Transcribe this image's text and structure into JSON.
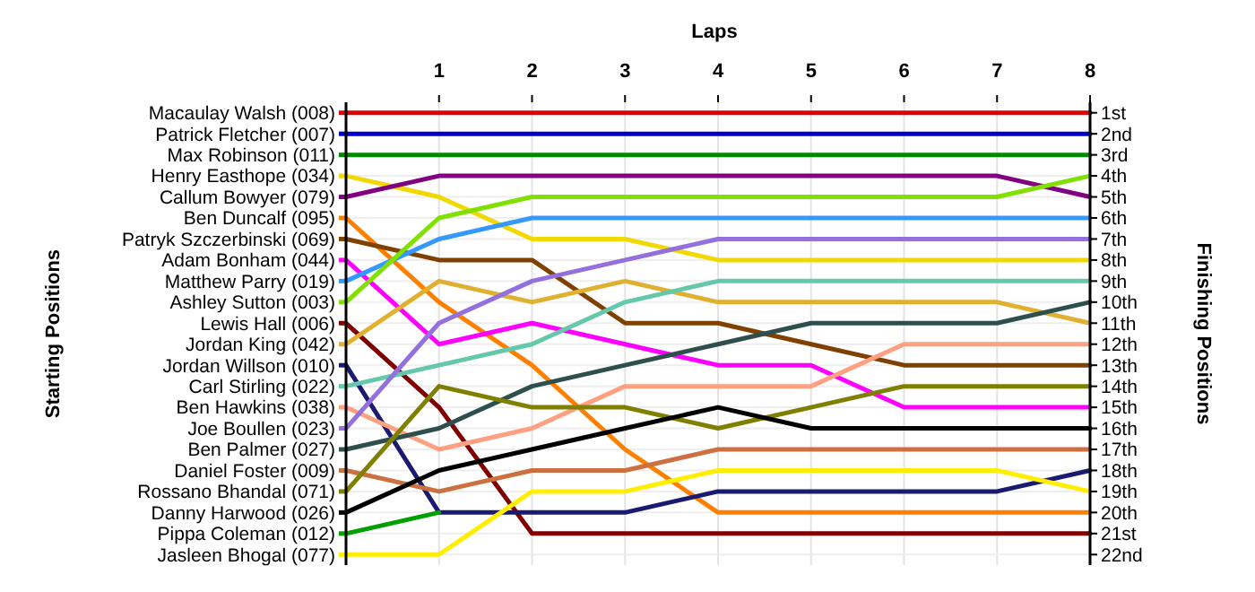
{
  "chart_data": {
    "type": "line",
    "xlabel": "Laps",
    "ylabel": "Finishing Positions",
    "xlim": [
      0,
      8
    ],
    "xticks": [
      1,
      2,
      3,
      4,
      5,
      6,
      7,
      8
    ],
    "x": [
      0,
      1,
      2,
      3,
      4,
      5,
      6,
      7,
      8
    ],
    "ylim": [
      22.5,
      0.5
    ],
    "yticks": [
      {
        "value": 1,
        "label": "1st"
      },
      {
        "value": 2,
        "label": "2nd"
      },
      {
        "value": 3,
        "label": "3rd"
      },
      {
        "value": 4,
        "label": "4th"
      },
      {
        "value": 5,
        "label": "5th"
      },
      {
        "value": 6,
        "label": "6th"
      },
      {
        "value": 7,
        "label": "7th"
      },
      {
        "value": 8,
        "label": "8th"
      },
      {
        "value": 9,
        "label": "9th"
      },
      {
        "value": 10,
        "label": "10th"
      },
      {
        "value": 11,
        "label": "11th"
      },
      {
        "value": 12,
        "label": "12th"
      },
      {
        "value": 13,
        "label": "13th"
      },
      {
        "value": 14,
        "label": "14th"
      },
      {
        "value": 15,
        "label": "15th"
      },
      {
        "value": 16,
        "label": "16th"
      },
      {
        "value": 17,
        "label": "17th"
      },
      {
        "value": 18,
        "label": "18th"
      },
      {
        "value": 19,
        "label": "19th"
      },
      {
        "value": 20,
        "label": "20th"
      },
      {
        "value": 21,
        "label": "21st"
      },
      {
        "value": 22,
        "label": "22nd"
      }
    ],
    "annotations": [
      "Starting Positions"
    ],
    "grid": true,
    "legend": "left",
    "marker": "none",
    "line_style": "solid",
    "series": [
      {
        "name": "Macaulay Walsh (008)",
        "color": "#e00000",
        "values": [
          1,
          1,
          1,
          1,
          1,
          1,
          1,
          1,
          1
        ]
      },
      {
        "name": "Patrick Fletcher (007)",
        "color": "#0000c8",
        "values": [
          2,
          2,
          2,
          2,
          2,
          2,
          2,
          2,
          2
        ]
      },
      {
        "name": "Max Robinson (011)",
        "color": "#008a00",
        "values": [
          3,
          3,
          3,
          3,
          3,
          3,
          3,
          3,
          3
        ]
      },
      {
        "name": "Henry Easthope (034)",
        "color": "#f0d800",
        "values": [
          4,
          5,
          7,
          7,
          8,
          8,
          8,
          8,
          8
        ]
      },
      {
        "name": "Callum Bowyer (079)",
        "color": "#800080",
        "values": [
          5,
          4,
          4,
          4,
          4,
          4,
          4,
          4,
          5
        ]
      },
      {
        "name": "Ben Duncalf (095)",
        "color": "#ff8000",
        "values": [
          6,
          10,
          13,
          17,
          20,
          20,
          20,
          20,
          20
        ]
      },
      {
        "name": "Patryk Szczerbinski (069)",
        "color": "#804000",
        "values": [
          7,
          8,
          8,
          11,
          11,
          12,
          13,
          13,
          13
        ]
      },
      {
        "name": "Adam Bonham (044)",
        "color": "#ff00ff",
        "values": [
          8,
          12,
          11,
          12,
          13,
          13,
          15,
          15,
          15
        ]
      },
      {
        "name": "Matthew Parry (019)",
        "color": "#3399ff",
        "values": [
          9,
          7,
          6,
          6,
          6,
          6,
          6,
          6,
          6
        ]
      },
      {
        "name": "Ashley Sutton (003)",
        "color": "#80e000",
        "values": [
          10,
          6,
          5,
          5,
          5,
          5,
          5,
          5,
          4
        ]
      },
      {
        "name": "Lewis Hall (006)",
        "color": "#800000",
        "values": [
          11,
          15,
          21,
          21,
          21,
          21,
          21,
          21,
          21
        ]
      },
      {
        "name": "Jordan King (042)",
        "color": "#e0b030",
        "values": [
          12,
          9,
          10,
          9,
          10,
          10,
          10,
          10,
          11
        ]
      },
      {
        "name": "Jordan Willson (010)",
        "color": "#1a1a70",
        "values": [
          13,
          20,
          20,
          20,
          19,
          19,
          19,
          19,
          18
        ]
      },
      {
        "name": "Carl Stirling (022)",
        "color": "#66c8aa",
        "values": [
          14,
          13,
          12,
          10,
          9,
          9,
          9,
          9,
          9
        ]
      },
      {
        "name": "Ben Hawkins (038)",
        "color": "#ffa080",
        "values": [
          15,
          17,
          16,
          14,
          14,
          14,
          12,
          12,
          12
        ]
      },
      {
        "name": "Joe Boullen (023)",
        "color": "#9370db",
        "values": [
          16,
          11,
          9,
          8,
          7,
          7,
          7,
          7,
          7
        ]
      },
      {
        "name": "Ben Palmer (027)",
        "color": "#2f4f4f",
        "values": [
          17,
          16,
          14,
          13,
          12,
          11,
          11,
          11,
          10
        ]
      },
      {
        "name": "Daniel Foster (009)",
        "color": "#cd7040",
        "values": [
          18,
          19,
          18,
          18,
          17,
          17,
          17,
          17,
          17
        ]
      },
      {
        "name": "Rossano Bhandal (071)",
        "color": "#808000",
        "values": [
          19,
          14,
          15,
          15,
          16,
          15,
          14,
          14,
          14
        ]
      },
      {
        "name": "Danny Harwood (026)",
        "color": "#000000",
        "values": [
          20,
          18,
          17,
          16,
          15,
          16,
          16,
          16,
          16
        ]
      },
      {
        "name": "Pippa Coleman (012)",
        "color": "#00a000",
        "values": [
          21,
          20,
          null,
          null,
          null,
          null,
          null,
          null,
          null
        ]
      },
      {
        "name": "Jasleen Bhogal (077)",
        "color": "#ffee00",
        "values": [
          22,
          22,
          19,
          19,
          18,
          18,
          18,
          18,
          19
        ]
      }
    ]
  }
}
